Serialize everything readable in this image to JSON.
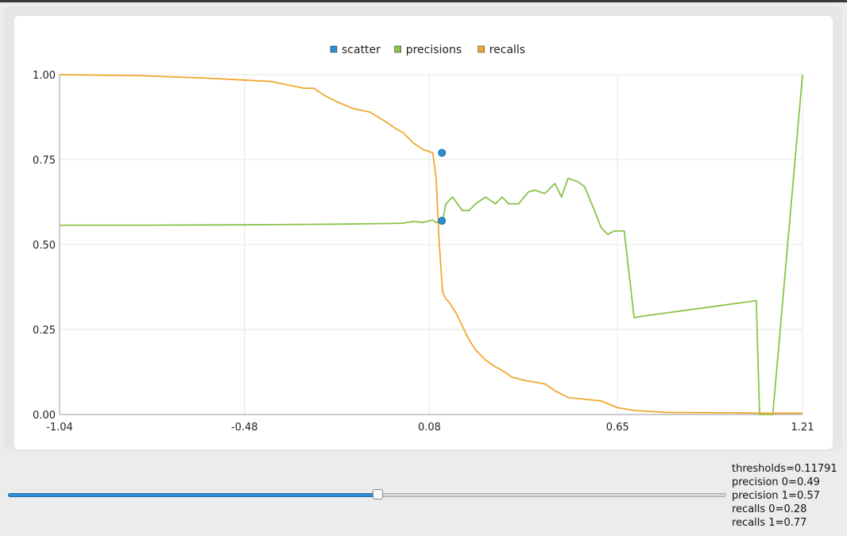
{
  "colors": {
    "scatter": "#1f77b4",
    "precisions": "#8bc34a",
    "recalls": "#f0a830",
    "grid": "#e6e6e6"
  },
  "legend": [
    {
      "label": "scatter",
      "color": "#2b8fd1"
    },
    {
      "label": "precisions",
      "color": "#8bc34a"
    },
    {
      "label": "recalls",
      "color": "#f0a830"
    }
  ],
  "chart_data": {
    "type": "line",
    "title": "",
    "xlabel": "",
    "ylabel": "",
    "xlim": [
      -1.04,
      1.21
    ],
    "ylim": [
      0,
      1
    ],
    "grid": true,
    "legend_position": "top-center",
    "x_ticks": [
      "-1.04",
      "-0.48",
      "0.08",
      "0.65",
      "1.21"
    ],
    "y_ticks": [
      "0.00",
      "0.25",
      "0.50",
      "0.75",
      "1.00"
    ],
    "series": [
      {
        "name": "precisions",
        "x": [
          -1.04,
          -0.8,
          -0.5,
          -0.2,
          -0.05,
          0.0,
          0.03,
          0.06,
          0.09,
          0.1,
          0.12,
          0.13,
          0.15,
          0.18,
          0.2,
          0.22,
          0.25,
          0.28,
          0.3,
          0.32,
          0.35,
          0.38,
          0.4,
          0.43,
          0.46,
          0.48,
          0.5,
          0.53,
          0.55,
          0.58,
          0.6,
          0.62,
          0.64,
          0.67,
          0.7,
          0.73,
          1.07,
          1.08,
          1.1,
          1.12,
          1.21
        ],
        "y": [
          0.557,
          0.557,
          0.558,
          0.56,
          0.562,
          0.563,
          0.568,
          0.565,
          0.572,
          0.565,
          0.57,
          0.62,
          0.64,
          0.6,
          0.6,
          0.62,
          0.64,
          0.62,
          0.64,
          0.62,
          0.62,
          0.655,
          0.66,
          0.65,
          0.68,
          0.64,
          0.695,
          0.685,
          0.67,
          0.6,
          0.55,
          0.53,
          0.54,
          0.54,
          0.285,
          0.29,
          0.335,
          0.0,
          0.0,
          0.0,
          1.0
        ]
      },
      {
        "name": "recalls",
        "x": [
          -1.04,
          -0.8,
          -0.6,
          -0.5,
          -0.4,
          -0.35,
          -0.3,
          -0.27,
          -0.24,
          -0.2,
          -0.15,
          -0.1,
          -0.05,
          -0.02,
          0.0,
          0.03,
          0.06,
          0.09,
          0.1,
          0.11,
          0.12,
          0.13,
          0.14,
          0.16,
          0.18,
          0.2,
          0.22,
          0.25,
          0.28,
          0.3,
          0.33,
          0.37,
          0.4,
          0.43,
          0.46,
          0.5,
          0.55,
          0.6,
          0.65,
          0.7,
          0.8,
          1.0,
          1.09,
          1.21
        ],
        "y": [
          1.0,
          0.997,
          0.99,
          0.985,
          0.98,
          0.97,
          0.96,
          0.96,
          0.94,
          0.92,
          0.9,
          0.89,
          0.86,
          0.84,
          0.83,
          0.8,
          0.78,
          0.77,
          0.7,
          0.5,
          0.36,
          0.34,
          0.33,
          0.3,
          0.26,
          0.22,
          0.19,
          0.16,
          0.14,
          0.13,
          0.11,
          0.1,
          0.095,
          0.09,
          0.07,
          0.05,
          0.045,
          0.04,
          0.02,
          0.012,
          0.006,
          0.005,
          0.004,
          0.004
        ]
      },
      {
        "name": "scatter",
        "type": "scatter",
        "x": [
          0.11791,
          0.11791
        ],
        "y": [
          0.77,
          0.57
        ]
      }
    ]
  },
  "slider": {
    "value": 0.11791,
    "min": -1.04,
    "max": 1.21
  },
  "readout": {
    "thresholds": "thresholds=0.11791",
    "precision0": "precision 0=0.49",
    "precision1": "precision 1=0.57",
    "recalls0": "recalls 0=0.28",
    "recalls1": "recalls 1=0.77"
  }
}
